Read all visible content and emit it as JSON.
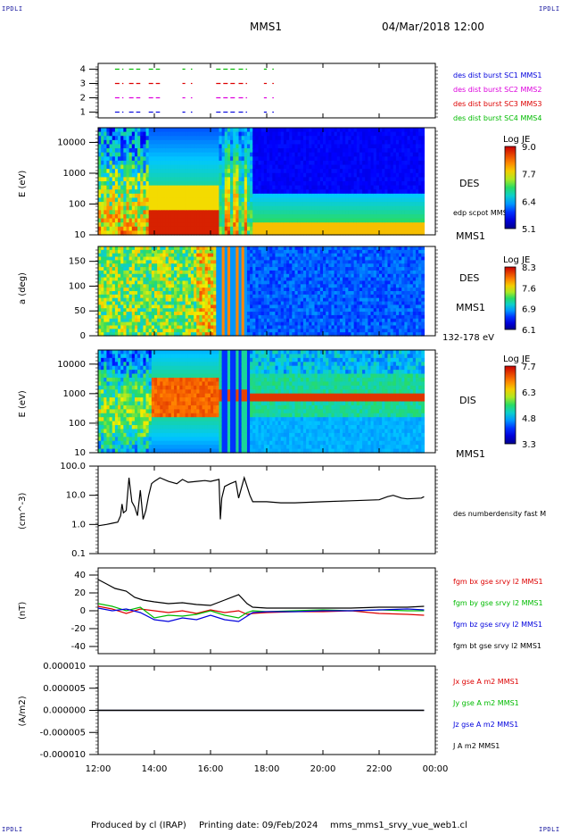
{
  "header": {
    "corner_label": "IPDLI",
    "spacecraft": "MMS1",
    "datetime": "04/Mar/2018 12:00"
  },
  "footer": {
    "produced_by": "Produced by cl (IRAP)",
    "printing_date": "Printing date: 09/Feb/2024",
    "filename": "mms_mms1_srvy_vue_web1.cl"
  },
  "colors": {
    "red": "#dd0000",
    "green": "#00bb00",
    "blue": "#0000dd",
    "magenta": "#dd00dd",
    "black": "#000000"
  },
  "chart_data": [
    {
      "type": "line",
      "panel": "burst availability",
      "y_ticks": [
        "1",
        "2",
        "3",
        "4"
      ],
      "ylim": [
        0.6,
        4.4
      ],
      "x_ticks": [
        "12:00",
        "14:00",
        "16:00",
        "18:00",
        "20:00",
        "22:00",
        "00:00"
      ],
      "legend": [
        "des dist burst SC1 MMS1",
        "des dist burst SC2 MMS2",
        "des dist burst SC3 MMS3",
        "des dist burst SC4 MMS4"
      ],
      "series": [
        {
          "name": "des dist burst SC4 MMS4",
          "y": 4,
          "color": "green",
          "segments": [
            [
              12.6,
              12.9
            ],
            [
              13.1,
              13.5
            ],
            [
              13.8,
              14.2
            ],
            [
              15.0,
              15.1
            ],
            [
              15.3,
              15.35
            ],
            [
              16.2,
              16.9
            ],
            [
              17.0,
              17.3
            ],
            [
              17.9,
              18.0
            ],
            [
              18.2,
              18.25
            ]
          ]
        },
        {
          "name": "des dist burst SC3 MMS3",
          "y": 3,
          "color": "red",
          "segments": [
            [
              12.6,
              12.9
            ],
            [
              13.1,
              13.5
            ],
            [
              13.8,
              14.2
            ],
            [
              15.0,
              15.1
            ],
            [
              15.3,
              15.35
            ],
            [
              16.2,
              16.9
            ],
            [
              17.0,
              17.3
            ],
            [
              17.9,
              18.0
            ],
            [
              18.2,
              18.25
            ]
          ]
        },
        {
          "name": "des dist burst SC2 MMS2",
          "y": 2,
          "color": "magenta",
          "segments": [
            [
              12.6,
              12.9
            ],
            [
              13.1,
              13.5
            ],
            [
              13.8,
              14.2
            ],
            [
              15.0,
              15.1
            ],
            [
              15.3,
              15.35
            ],
            [
              16.2,
              16.9
            ],
            [
              17.0,
              17.3
            ],
            [
              17.9,
              18.0
            ],
            [
              18.2,
              18.25
            ]
          ]
        },
        {
          "name": "des dist burst SC1 MMS1",
          "y": 1,
          "color": "blue",
          "segments": [
            [
              12.6,
              12.9
            ],
            [
              13.1,
              13.5
            ],
            [
              13.8,
              14.2
            ],
            [
              15.0,
              15.1
            ],
            [
              15.3,
              15.35
            ],
            [
              16.2,
              16.9
            ],
            [
              17.0,
              17.3
            ],
            [
              17.9,
              18.0
            ],
            [
              18.2,
              18.25
            ]
          ]
        }
      ]
    },
    {
      "type": "heatmap",
      "panel": "DES energy spectrogram",
      "ylabel": "E (eV)",
      "y_scale": "log",
      "ylim": [
        10,
        30000
      ],
      "y_ticks": [
        "10000",
        "1000",
        "100",
        "10"
      ],
      "instrument": "DES",
      "spacecraft": "MMS1",
      "overlay_label": "edp scpot MMS1",
      "colorbar": {
        "title": "Log JE",
        "ticks": [
          "9.0",
          "7.7",
          "6.4",
          "5.1"
        ],
        "range": [
          5.1,
          9.0
        ]
      },
      "x_ticks": [
        "12:00",
        "14:00",
        "16:00",
        "18:00",
        "20:00",
        "22:00",
        "00:00"
      ]
    },
    {
      "type": "heatmap",
      "panel": "DES pitch angle",
      "ylabel": "a (deg)",
      "ylim": [
        0,
        180
      ],
      "y_ticks": [
        "150",
        "100",
        "50",
        "0"
      ],
      "instrument": "DES",
      "spacecraft": "MMS1",
      "energy_range": "132-178 eV",
      "colorbar": {
        "title": "Log JE",
        "ticks": [
          "8.3",
          "7.6",
          "6.9",
          "6.1"
        ],
        "range": [
          6.1,
          8.3
        ]
      },
      "x_ticks": [
        "12:00",
        "14:00",
        "16:00",
        "18:00",
        "20:00",
        "22:00",
        "00:00"
      ]
    },
    {
      "type": "heatmap",
      "panel": "DIS energy spectrogram",
      "ylabel": "E (eV)",
      "y_scale": "log",
      "ylim": [
        10,
        30000
      ],
      "y_ticks": [
        "10000",
        "1000",
        "100",
        "10"
      ],
      "instrument": "DIS",
      "spacecraft": "MMS1",
      "colorbar": {
        "title": "Log JE",
        "ticks": [
          "7.7",
          "6.3",
          "4.8",
          "3.3"
        ],
        "range": [
          3.3,
          7.7
        ]
      },
      "x_ticks": [
        "12:00",
        "14:00",
        "16:00",
        "18:00",
        "20:00",
        "22:00",
        "00:00"
      ]
    },
    {
      "type": "line",
      "panel": "electron density",
      "ylabel": "(cm^-3)",
      "y_scale": "log",
      "ylim": [
        0.1,
        100
      ],
      "y_ticks": [
        "100.0",
        "10.0",
        "1.0",
        "0.1"
      ],
      "legend": [
        "des numberdensity fast M"
      ],
      "x_ticks": [
        "12:00",
        "14:00",
        "16:00",
        "18:00",
        "20:00",
        "22:00",
        "00:00"
      ],
      "series": [
        {
          "name": "des numberdensity fast M",
          "color": "black",
          "x": [
            12.0,
            12.3,
            12.5,
            12.7,
            12.8,
            12.85,
            12.9,
            13.0,
            13.1,
            13.2,
            13.3,
            13.4,
            13.5,
            13.6,
            13.7,
            13.8,
            13.9,
            14.0,
            14.2,
            14.5,
            14.8,
            15.0,
            15.2,
            15.5,
            15.8,
            16.0,
            16.3,
            16.35,
            16.4,
            16.5,
            16.7,
            16.9,
            17.0,
            17.2,
            17.4,
            17.5,
            18.0,
            18.5,
            19.0,
            20.0,
            21.0,
            22.0,
            22.3,
            22.5,
            22.8,
            23.0,
            23.5,
            23.6
          ],
          "y": [
            0.9,
            1.0,
            1.1,
            1.2,
            2.0,
            5.0,
            2.5,
            3.0,
            40.0,
            6.0,
            4.0,
            2.0,
            15.0,
            1.5,
            3.0,
            10.0,
            25.0,
            30.0,
            40.0,
            30.0,
            25.0,
            35.0,
            28.0,
            30.0,
            32.0,
            30.0,
            35.0,
            1.5,
            8.0,
            20.0,
            25.0,
            30.0,
            8.0,
            40.0,
            10.0,
            6.0,
            6.0,
            5.5,
            5.5,
            6.0,
            6.5,
            7.0,
            9.0,
            10.0,
            8.0,
            7.5,
            8.0,
            9.0
          ]
        }
      ]
    },
    {
      "type": "line",
      "panel": "magnetic field",
      "ylabel": "(nT)",
      "ylim": [
        -48,
        48
      ],
      "y_ticks": [
        "40",
        "20",
        "0",
        "-20",
        "-40"
      ],
      "x_ticks": [
        "12:00",
        "14:00",
        "16:00",
        "18:00",
        "20:00",
        "22:00",
        "00:00"
      ],
      "legend": [
        "fgm bx gse srvy l2 MMS1",
        "fgm by gse srvy l2 MMS1",
        "fgm bz gse srvy l2 MMS1",
        "fgm bt gse srvy l2 MMS1"
      ],
      "series": [
        {
          "name": "fgm bx gse srvy l2 MMS1",
          "color": "red",
          "x": [
            12.0,
            12.5,
            13.0,
            13.5,
            14.0,
            14.5,
            15.0,
            15.5,
            16.0,
            16.5,
            17.0,
            17.3,
            17.5,
            18.0,
            19.0,
            20.0,
            21.0,
            22.0,
            23.0,
            23.6
          ],
          "y": [
            5,
            2,
            -3,
            2,
            0,
            -2,
            0,
            -3,
            1,
            -2,
            0,
            -4,
            -3,
            -2,
            -1,
            -1,
            0,
            -3,
            -4,
            -5
          ]
        },
        {
          "name": "fgm by gse srvy l2 MMS1",
          "color": "green",
          "x": [
            12.0,
            12.5,
            13.0,
            13.5,
            14.0,
            14.5,
            15.0,
            15.5,
            16.0,
            16.5,
            17.0,
            17.3,
            17.5,
            18.0,
            19.0,
            20.0,
            21.0,
            22.0,
            23.0,
            23.6
          ],
          "y": [
            8,
            5,
            0,
            4,
            -8,
            -5,
            -6,
            -4,
            0,
            -5,
            -8,
            -2,
            0,
            -1,
            0,
            1,
            0,
            1,
            0,
            0
          ]
        },
        {
          "name": "fgm bz gse srvy l2 MMS1",
          "color": "blue",
          "x": [
            12.0,
            12.5,
            13.0,
            13.5,
            14.0,
            14.5,
            15.0,
            15.5,
            16.0,
            16.5,
            17.0,
            17.3,
            17.5,
            18.0,
            19.0,
            20.0,
            21.0,
            22.0,
            23.0,
            23.6
          ],
          "y": [
            3,
            0,
            2,
            -2,
            -10,
            -12,
            -8,
            -10,
            -5,
            -10,
            -12,
            -6,
            -2,
            -1,
            -1,
            0,
            0,
            1,
            2,
            1
          ]
        },
        {
          "name": "fgm bt gse srvy l2 MMS1",
          "color": "black",
          "x": [
            12.0,
            12.3,
            12.6,
            13.0,
            13.3,
            13.6,
            14.0,
            14.5,
            15.0,
            15.5,
            16.0,
            16.5,
            17.0,
            17.3,
            17.5,
            18.0,
            19.0,
            20.0,
            21.0,
            22.0,
            23.0,
            23.6
          ],
          "y": [
            35,
            30,
            25,
            22,
            15,
            12,
            10,
            8,
            9,
            7,
            6,
            12,
            18,
            8,
            4,
            3,
            3,
            3,
            3,
            4,
            4,
            5
          ]
        }
      ]
    },
    {
      "type": "line",
      "panel": "current density",
      "ylabel": "(A/m2)",
      "ylim": [
        -0.0001,
        0.0001
      ],
      "y_ticks": [
        "0.000010",
        "0.000005",
        "0.000000",
        "-0.000005",
        "-0.000010"
      ],
      "x_ticks": [
        "12:00",
        "14:00",
        "16:00",
        "18:00",
        "20:00",
        "22:00",
        "00:00"
      ],
      "legend": [
        "Jx gse A m2 MMS1",
        "Jy gse A m2 MMS1",
        "Jz gse A m2 MMS1",
        "J A m2 MMS1"
      ],
      "series": [
        {
          "name": "Jx gse A m2 MMS1",
          "color": "red",
          "x": [
            12.0,
            23.6
          ],
          "y": [
            0,
            0
          ]
        },
        {
          "name": "Jy gse A m2 MMS1",
          "color": "green",
          "x": [
            12.0,
            23.6
          ],
          "y": [
            0,
            0
          ]
        },
        {
          "name": "Jz gse A m2 MMS1",
          "color": "blue",
          "x": [
            12.0,
            23.6
          ],
          "y": [
            0,
            0
          ]
        },
        {
          "name": "J A m2 MMS1",
          "color": "black",
          "x": [
            12.0,
            23.6
          ],
          "y": [
            0,
            0
          ]
        }
      ]
    }
  ]
}
